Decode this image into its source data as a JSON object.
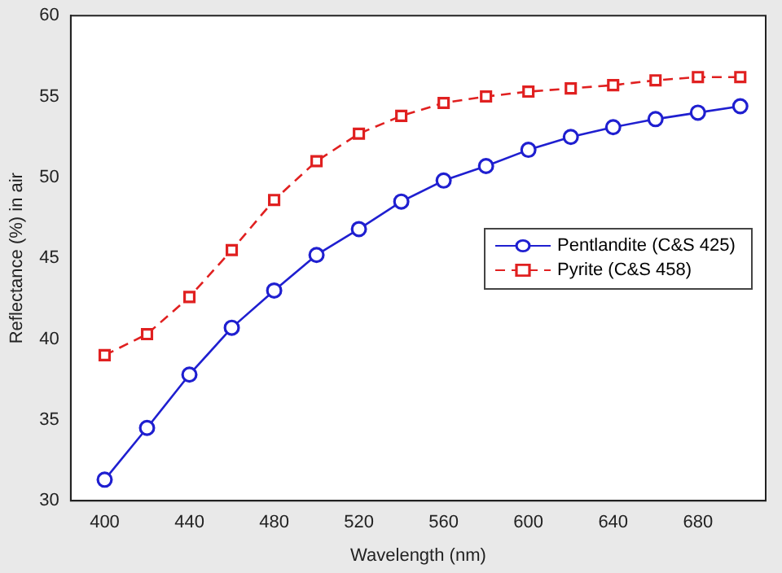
{
  "chart_data": {
    "type": "line",
    "xlabel": "Wavelength (nm)",
    "ylabel": "Reflectance (%) in air",
    "x": [
      400,
      420,
      440,
      460,
      480,
      500,
      520,
      540,
      560,
      580,
      600,
      620,
      640,
      660,
      680,
      700
    ],
    "series": [
      {
        "name": "Pentlandite (C&S 425)",
        "color": "#1f1fd0",
        "marker": "circle",
        "line_style": "solid",
        "values": [
          31.3,
          34.5,
          37.8,
          40.7,
          43.0,
          45.2,
          46.8,
          48.5,
          49.8,
          50.7,
          51.7,
          52.5,
          53.1,
          53.6,
          54.0,
          54.4
        ]
      },
      {
        "name": "Pyrite (C&S 458)",
        "color": "#e02020",
        "marker": "square",
        "line_style": "dashed",
        "values": [
          39.0,
          40.3,
          42.6,
          45.5,
          48.6,
          51.0,
          52.7,
          53.8,
          54.6,
          55.0,
          55.3,
          55.5,
          55.7,
          56.0,
          56.2,
          56.2
        ]
      }
    ],
    "xlim": [
      384,
      712
    ],
    "xticks": [
      400,
      440,
      480,
      520,
      560,
      600,
      640,
      680
    ],
    "ylim": [
      30,
      60
    ],
    "yticks": [
      30,
      35,
      40,
      45,
      50,
      55,
      60
    ],
    "grid": false,
    "legend": "right"
  }
}
